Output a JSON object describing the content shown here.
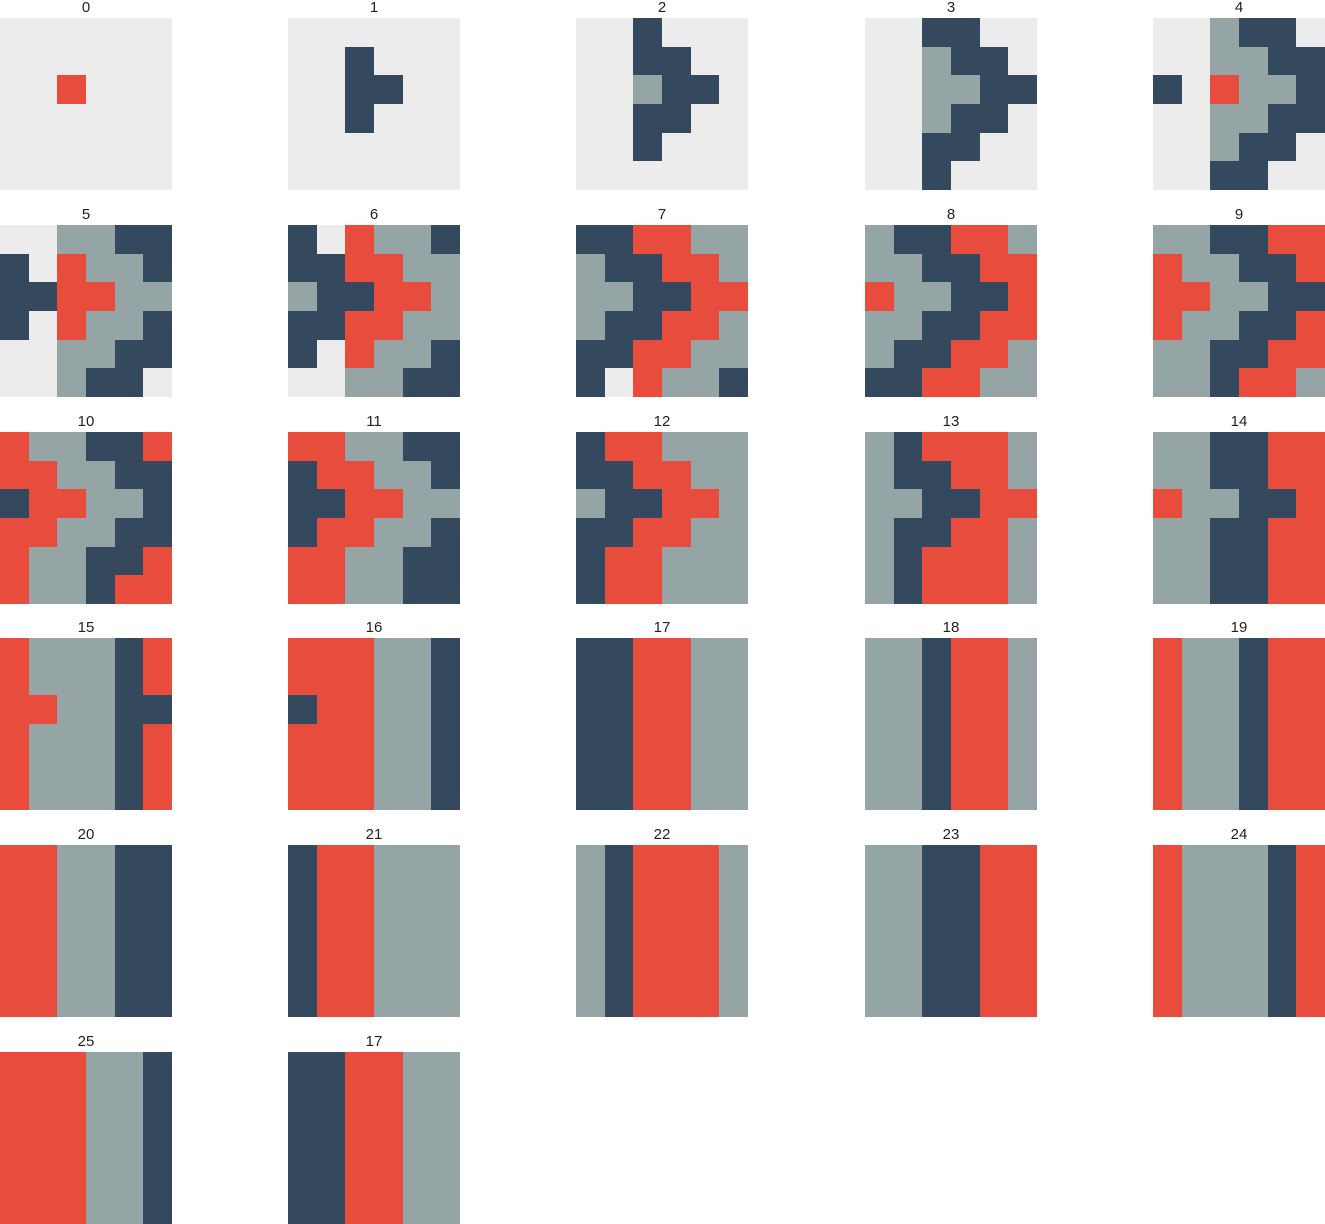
{
  "palette": {
    "0": "#ececec",
    "1": "#e84c3d",
    "2": "#34495e",
    "3": "#95a5a6"
  },
  "color_names": {
    "0": "empty",
    "1": "red",
    "2": "navy",
    "3": "gray"
  },
  "panels": [
    {
      "label": "0",
      "grid": [
        [
          0,
          0,
          0,
          0,
          0,
          0
        ],
        [
          0,
          0,
          0,
          0,
          0,
          0
        ],
        [
          0,
          0,
          1,
          0,
          0,
          0
        ],
        [
          0,
          0,
          0,
          0,
          0,
          0
        ],
        [
          0,
          0,
          0,
          0,
          0,
          0
        ],
        [
          0,
          0,
          0,
          0,
          0,
          0
        ]
      ]
    },
    {
      "label": "1",
      "grid": [
        [
          0,
          0,
          0,
          0,
          0,
          0
        ],
        [
          0,
          0,
          2,
          0,
          0,
          0
        ],
        [
          0,
          0,
          2,
          2,
          0,
          0
        ],
        [
          0,
          0,
          2,
          0,
          0,
          0
        ],
        [
          0,
          0,
          0,
          0,
          0,
          0
        ],
        [
          0,
          0,
          0,
          0,
          0,
          0
        ]
      ]
    },
    {
      "label": "2",
      "grid": [
        [
          0,
          0,
          2,
          0,
          0,
          0
        ],
        [
          0,
          0,
          2,
          2,
          0,
          0
        ],
        [
          0,
          0,
          3,
          2,
          2,
          0
        ],
        [
          0,
          0,
          2,
          2,
          0,
          0
        ],
        [
          0,
          0,
          2,
          0,
          0,
          0
        ],
        [
          0,
          0,
          0,
          0,
          0,
          0
        ]
      ]
    },
    {
      "label": "3",
      "grid": [
        [
          0,
          0,
          2,
          2,
          0,
          0
        ],
        [
          0,
          0,
          3,
          2,
          2,
          0
        ],
        [
          0,
          0,
          3,
          3,
          2,
          2
        ],
        [
          0,
          0,
          3,
          2,
          2,
          0
        ],
        [
          0,
          0,
          2,
          2,
          0,
          0
        ],
        [
          0,
          0,
          2,
          0,
          0,
          0
        ]
      ]
    },
    {
      "label": "4",
      "grid": [
        [
          0,
          0,
          3,
          2,
          2,
          0
        ],
        [
          0,
          0,
          3,
          3,
          2,
          2
        ],
        [
          2,
          0,
          1,
          3,
          3,
          2
        ],
        [
          0,
          0,
          3,
          3,
          2,
          2
        ],
        [
          0,
          0,
          3,
          2,
          2,
          0
        ],
        [
          0,
          0,
          2,
          2,
          0,
          0
        ]
      ]
    },
    {
      "label": "5",
      "grid": [
        [
          0,
          0,
          3,
          3,
          2,
          2
        ],
        [
          2,
          0,
          1,
          3,
          3,
          2
        ],
        [
          2,
          2,
          1,
          1,
          3,
          3
        ],
        [
          2,
          0,
          1,
          3,
          3,
          2
        ],
        [
          0,
          0,
          3,
          3,
          2,
          2
        ],
        [
          0,
          0,
          3,
          2,
          2,
          0
        ]
      ]
    },
    {
      "label": "6",
      "grid": [
        [
          2,
          0,
          1,
          3,
          3,
          2
        ],
        [
          2,
          2,
          1,
          1,
          3,
          3
        ],
        [
          3,
          2,
          2,
          1,
          1,
          3
        ],
        [
          2,
          2,
          1,
          1,
          3,
          3
        ],
        [
          2,
          0,
          1,
          3,
          3,
          2
        ],
        [
          0,
          0,
          3,
          3,
          2,
          2
        ]
      ]
    },
    {
      "label": "7",
      "grid": [
        [
          2,
          2,
          1,
          1,
          3,
          3
        ],
        [
          3,
          2,
          2,
          1,
          1,
          3
        ],
        [
          3,
          3,
          2,
          2,
          1,
          1
        ],
        [
          3,
          2,
          2,
          1,
          1,
          3
        ],
        [
          2,
          2,
          1,
          1,
          3,
          3
        ],
        [
          2,
          0,
          1,
          3,
          3,
          2
        ]
      ]
    },
    {
      "label": "8",
      "grid": [
        [
          3,
          2,
          2,
          1,
          1,
          3
        ],
        [
          3,
          3,
          2,
          2,
          1,
          1
        ],
        [
          1,
          3,
          3,
          2,
          2,
          1
        ],
        [
          3,
          3,
          2,
          2,
          1,
          1
        ],
        [
          3,
          2,
          2,
          1,
          1,
          3
        ],
        [
          2,
          2,
          1,
          1,
          3,
          3
        ]
      ]
    },
    {
      "label": "9",
      "grid": [
        [
          3,
          3,
          2,
          2,
          1,
          1
        ],
        [
          1,
          3,
          3,
          2,
          2,
          1
        ],
        [
          1,
          1,
          3,
          3,
          2,
          2
        ],
        [
          1,
          3,
          3,
          2,
          2,
          1
        ],
        [
          3,
          3,
          2,
          2,
          1,
          1
        ],
        [
          3,
          3,
          2,
          1,
          1,
          3
        ]
      ]
    },
    {
      "label": "10",
      "grid": [
        [
          1,
          3,
          3,
          2,
          2,
          1
        ],
        [
          1,
          1,
          3,
          3,
          2,
          2
        ],
        [
          2,
          1,
          1,
          3,
          3,
          2
        ],
        [
          1,
          1,
          3,
          3,
          2,
          2
        ],
        [
          1,
          3,
          3,
          2,
          2,
          1
        ],
        [
          1,
          3,
          3,
          2,
          1,
          1
        ]
      ]
    },
    {
      "label": "11",
      "grid": [
        [
          1,
          1,
          3,
          3,
          2,
          2
        ],
        [
          2,
          1,
          1,
          3,
          3,
          2
        ],
        [
          2,
          2,
          1,
          1,
          3,
          3
        ],
        [
          2,
          1,
          1,
          3,
          3,
          2
        ],
        [
          1,
          1,
          3,
          3,
          2,
          2
        ],
        [
          1,
          1,
          3,
          3,
          2,
          2
        ]
      ]
    },
    {
      "label": "12",
      "grid": [
        [
          2,
          1,
          1,
          3,
          3,
          3
        ],
        [
          2,
          2,
          1,
          1,
          3,
          3
        ],
        [
          3,
          2,
          2,
          1,
          1,
          3
        ],
        [
          2,
          2,
          1,
          1,
          3,
          3
        ],
        [
          2,
          1,
          1,
          3,
          3,
          3
        ],
        [
          2,
          1,
          1,
          3,
          3,
          3
        ]
      ]
    },
    {
      "label": "13",
      "grid": [
        [
          3,
          2,
          1,
          1,
          1,
          3
        ],
        [
          3,
          2,
          2,
          1,
          1,
          3
        ],
        [
          3,
          3,
          2,
          2,
          1,
          1
        ],
        [
          3,
          2,
          2,
          1,
          1,
          3
        ],
        [
          3,
          2,
          1,
          1,
          1,
          3
        ],
        [
          3,
          2,
          1,
          1,
          1,
          3
        ]
      ]
    },
    {
      "label": "14",
      "grid": [
        [
          3,
          3,
          2,
          2,
          1,
          1
        ],
        [
          3,
          3,
          2,
          2,
          1,
          1
        ],
        [
          1,
          3,
          3,
          2,
          2,
          1
        ],
        [
          3,
          3,
          2,
          2,
          1,
          1
        ],
        [
          3,
          3,
          2,
          2,
          1,
          1
        ],
        [
          3,
          3,
          2,
          2,
          1,
          1
        ]
      ]
    },
    {
      "label": "15",
      "grid": [
        [
          1,
          3,
          3,
          3,
          2,
          1
        ],
        [
          1,
          3,
          3,
          3,
          2,
          1
        ],
        [
          1,
          1,
          3,
          3,
          2,
          2
        ],
        [
          1,
          3,
          3,
          3,
          2,
          1
        ],
        [
          1,
          3,
          3,
          3,
          2,
          1
        ],
        [
          1,
          3,
          3,
          3,
          2,
          1
        ]
      ]
    },
    {
      "label": "16",
      "grid": [
        [
          1,
          1,
          1,
          3,
          3,
          2
        ],
        [
          1,
          1,
          1,
          3,
          3,
          2
        ],
        [
          2,
          1,
          1,
          3,
          3,
          2
        ],
        [
          1,
          1,
          1,
          3,
          3,
          2
        ],
        [
          1,
          1,
          1,
          3,
          3,
          2
        ],
        [
          1,
          1,
          1,
          3,
          3,
          2
        ]
      ]
    },
    {
      "label": "17",
      "grid": [
        [
          2,
          2,
          1,
          1,
          3,
          3
        ],
        [
          2,
          2,
          1,
          1,
          3,
          3
        ],
        [
          2,
          2,
          1,
          1,
          3,
          3
        ],
        [
          2,
          2,
          1,
          1,
          3,
          3
        ],
        [
          2,
          2,
          1,
          1,
          3,
          3
        ],
        [
          2,
          2,
          1,
          1,
          3,
          3
        ]
      ]
    },
    {
      "label": "18",
      "grid": [
        [
          3,
          3,
          2,
          1,
          1,
          3
        ],
        [
          3,
          3,
          2,
          1,
          1,
          3
        ],
        [
          3,
          3,
          2,
          1,
          1,
          3
        ],
        [
          3,
          3,
          2,
          1,
          1,
          3
        ],
        [
          3,
          3,
          2,
          1,
          1,
          3
        ],
        [
          3,
          3,
          2,
          1,
          1,
          3
        ]
      ]
    },
    {
      "label": "19",
      "grid": [
        [
          1,
          3,
          3,
          2,
          1,
          1
        ],
        [
          1,
          3,
          3,
          2,
          1,
          1
        ],
        [
          1,
          3,
          3,
          2,
          1,
          1
        ],
        [
          1,
          3,
          3,
          2,
          1,
          1
        ],
        [
          1,
          3,
          3,
          2,
          1,
          1
        ],
        [
          1,
          3,
          3,
          2,
          1,
          1
        ]
      ]
    },
    {
      "label": "20",
      "grid": [
        [
          1,
          1,
          3,
          3,
          2,
          2
        ],
        [
          1,
          1,
          3,
          3,
          2,
          2
        ],
        [
          1,
          1,
          3,
          3,
          2,
          2
        ],
        [
          1,
          1,
          3,
          3,
          2,
          2
        ],
        [
          1,
          1,
          3,
          3,
          2,
          2
        ],
        [
          1,
          1,
          3,
          3,
          2,
          2
        ]
      ]
    },
    {
      "label": "21",
      "grid": [
        [
          2,
          1,
          1,
          3,
          3,
          3
        ],
        [
          2,
          1,
          1,
          3,
          3,
          3
        ],
        [
          2,
          1,
          1,
          3,
          3,
          3
        ],
        [
          2,
          1,
          1,
          3,
          3,
          3
        ],
        [
          2,
          1,
          1,
          3,
          3,
          3
        ],
        [
          2,
          1,
          1,
          3,
          3,
          3
        ]
      ]
    },
    {
      "label": "22",
      "grid": [
        [
          3,
          2,
          1,
          1,
          1,
          3
        ],
        [
          3,
          2,
          1,
          1,
          1,
          3
        ],
        [
          3,
          2,
          1,
          1,
          1,
          3
        ],
        [
          3,
          2,
          1,
          1,
          1,
          3
        ],
        [
          3,
          2,
          1,
          1,
          1,
          3
        ],
        [
          3,
          2,
          1,
          1,
          1,
          3
        ]
      ]
    },
    {
      "label": "23",
      "grid": [
        [
          3,
          3,
          2,
          2,
          1,
          1
        ],
        [
          3,
          3,
          2,
          2,
          1,
          1
        ],
        [
          3,
          3,
          2,
          2,
          1,
          1
        ],
        [
          3,
          3,
          2,
          2,
          1,
          1
        ],
        [
          3,
          3,
          2,
          2,
          1,
          1
        ],
        [
          3,
          3,
          2,
          2,
          1,
          1
        ]
      ]
    },
    {
      "label": "24",
      "grid": [
        [
          1,
          3,
          3,
          3,
          2,
          1
        ],
        [
          1,
          3,
          3,
          3,
          2,
          1
        ],
        [
          1,
          3,
          3,
          3,
          2,
          1
        ],
        [
          1,
          3,
          3,
          3,
          2,
          1
        ],
        [
          1,
          3,
          3,
          3,
          2,
          1
        ],
        [
          1,
          3,
          3,
          3,
          2,
          1
        ]
      ]
    },
    {
      "label": "25",
      "grid": [
        [
          1,
          1,
          1,
          3,
          3,
          2
        ],
        [
          1,
          1,
          1,
          3,
          3,
          2
        ],
        [
          1,
          1,
          1,
          3,
          3,
          2
        ],
        [
          1,
          1,
          1,
          3,
          3,
          2
        ],
        [
          1,
          1,
          1,
          3,
          3,
          2
        ],
        [
          1,
          1,
          1,
          3,
          3,
          2
        ]
      ]
    },
    {
      "label": "17",
      "grid": [
        [
          2,
          2,
          1,
          1,
          3,
          3
        ],
        [
          2,
          2,
          1,
          1,
          3,
          3
        ],
        [
          2,
          2,
          1,
          1,
          3,
          3
        ],
        [
          2,
          2,
          1,
          1,
          3,
          3
        ],
        [
          2,
          2,
          1,
          1,
          3,
          3
        ],
        [
          2,
          2,
          1,
          1,
          3,
          3
        ]
      ]
    }
  ]
}
